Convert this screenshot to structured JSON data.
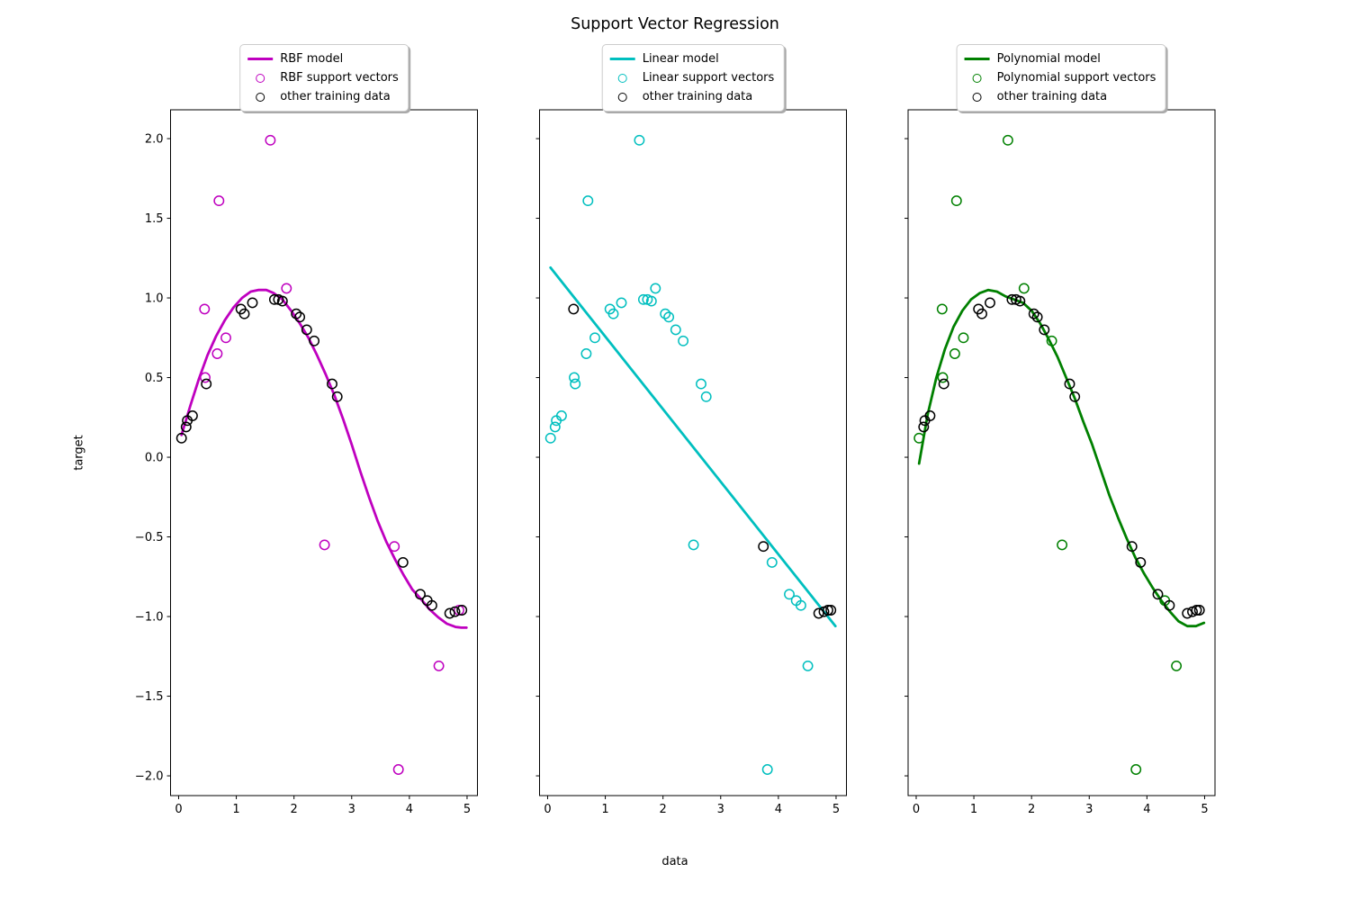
{
  "title": "Support Vector Regression",
  "xlabel": "data",
  "ylabel": "target",
  "other_color": "#000000",
  "axes": {
    "xlim": [
      -0.14,
      5.18
    ],
    "ylim": [
      -2.124,
      2.181
    ],
    "xtick_values": [
      0,
      1,
      2,
      3,
      4,
      5
    ],
    "xtick_labels": [
      "0",
      "1",
      "2",
      "3",
      "4",
      "5"
    ],
    "ytick_values": [
      -2,
      -1.5,
      -1,
      -0.5,
      0,
      0.5,
      1,
      1.5,
      2
    ],
    "ytick_labels": [
      "−2.0",
      "−1.5",
      "−1.0",
      "−0.5",
      "0.0",
      "0.5",
      "1.0",
      "1.5",
      "2.0"
    ],
    "grid": false,
    "legend_position": "upper center, above axes"
  },
  "chart_data": [
    {
      "type": "scatter",
      "kernel": "RBF",
      "color": "#bf00bf",
      "legend": [
        "RBF model",
        "RBF support vectors",
        "other training data"
      ],
      "model_curve": [
        [
          0.05,
          0.14
        ],
        [
          0.2,
          0.32
        ],
        [
          0.35,
          0.49
        ],
        [
          0.5,
          0.64
        ],
        [
          0.65,
          0.76
        ],
        [
          0.8,
          0.86
        ],
        [
          0.95,
          0.94
        ],
        [
          1.1,
          1.0
        ],
        [
          1.25,
          1.04
        ],
        [
          1.38,
          1.05
        ],
        [
          1.52,
          1.05
        ],
        [
          1.65,
          1.03
        ],
        [
          1.8,
          0.99
        ],
        [
          1.95,
          0.92
        ],
        [
          2.1,
          0.84
        ],
        [
          2.25,
          0.75
        ],
        [
          2.4,
          0.64
        ],
        [
          2.55,
          0.52
        ],
        [
          2.7,
          0.39
        ],
        [
          2.85,
          0.24
        ],
        [
          3.0,
          0.08
        ],
        [
          3.15,
          -0.09
        ],
        [
          3.3,
          -0.25
        ],
        [
          3.45,
          -0.4
        ],
        [
          3.6,
          -0.53
        ],
        [
          3.75,
          -0.64
        ],
        [
          3.9,
          -0.74
        ],
        [
          4.05,
          -0.83
        ],
        [
          4.2,
          -0.89
        ],
        [
          4.35,
          -0.955
        ],
        [
          4.5,
          -1.005
        ],
        [
          4.65,
          -1.045
        ],
        [
          4.8,
          -1.065
        ],
        [
          4.9,
          -1.07
        ],
        [
          4.99,
          -1.07
        ]
      ],
      "support_vectors": [
        [
          0.45,
          0.93
        ],
        [
          0.46,
          0.5
        ],
        [
          0.67,
          0.65
        ],
        [
          0.7,
          1.61
        ],
        [
          0.82,
          0.75
        ],
        [
          1.59,
          1.99
        ],
        [
          1.87,
          1.06
        ],
        [
          2.53,
          -0.55
        ],
        [
          3.74,
          -0.56
        ],
        [
          3.81,
          -1.96
        ],
        [
          4.51,
          -1.31
        ],
        [
          4.86,
          -0.96
        ]
      ],
      "other_points": [
        [
          0.05,
          0.12
        ],
        [
          0.13,
          0.19
        ],
        [
          0.15,
          0.23
        ],
        [
          0.24,
          0.26
        ],
        [
          0.48,
          0.46
        ],
        [
          1.08,
          0.93
        ],
        [
          1.14,
          0.9
        ],
        [
          1.28,
          0.97
        ],
        [
          1.66,
          0.99
        ],
        [
          1.73,
          0.99
        ],
        [
          1.8,
          0.98
        ],
        [
          2.04,
          0.9
        ],
        [
          2.1,
          0.88
        ],
        [
          2.22,
          0.8
        ],
        [
          2.35,
          0.73
        ],
        [
          2.66,
          0.46
        ],
        [
          2.75,
          0.38
        ],
        [
          3.89,
          -0.66
        ],
        [
          4.19,
          -0.86
        ],
        [
          4.31,
          -0.9
        ],
        [
          4.39,
          -0.93
        ],
        [
          4.7,
          -0.98
        ],
        [
          4.79,
          -0.97
        ],
        [
          4.91,
          -0.96
        ]
      ]
    },
    {
      "type": "scatter",
      "kernel": "Linear",
      "color": "#00bfbf",
      "legend": [
        "Linear model",
        "Linear support vectors",
        "other training data"
      ],
      "model_curve": [
        [
          0.05,
          1.19
        ],
        [
          4.99,
          -1.06
        ]
      ],
      "support_vectors": [
        [
          0.05,
          0.12
        ],
        [
          0.13,
          0.19
        ],
        [
          0.15,
          0.23
        ],
        [
          0.24,
          0.26
        ],
        [
          0.46,
          0.5
        ],
        [
          0.48,
          0.46
        ],
        [
          0.67,
          0.65
        ],
        [
          0.7,
          1.61
        ],
        [
          0.82,
          0.75
        ],
        [
          1.08,
          0.93
        ],
        [
          1.14,
          0.9
        ],
        [
          1.28,
          0.97
        ],
        [
          1.59,
          1.99
        ],
        [
          1.66,
          0.99
        ],
        [
          1.73,
          0.99
        ],
        [
          1.8,
          0.98
        ],
        [
          1.87,
          1.06
        ],
        [
          2.04,
          0.9
        ],
        [
          2.1,
          0.88
        ],
        [
          2.22,
          0.8
        ],
        [
          2.35,
          0.73
        ],
        [
          2.53,
          -0.55
        ],
        [
          2.66,
          0.46
        ],
        [
          2.75,
          0.38
        ],
        [
          3.81,
          -1.96
        ],
        [
          3.89,
          -0.66
        ],
        [
          4.19,
          -0.86
        ],
        [
          4.31,
          -0.9
        ],
        [
          4.39,
          -0.93
        ],
        [
          4.51,
          -1.31
        ]
      ],
      "other_points": [
        [
          0.45,
          0.93
        ],
        [
          3.74,
          -0.56
        ],
        [
          4.7,
          -0.98
        ],
        [
          4.79,
          -0.97
        ],
        [
          4.86,
          -0.96
        ],
        [
          4.91,
          -0.96
        ]
      ]
    },
    {
      "type": "scatter",
      "kernel": "Polynomial",
      "color": "#008000",
      "legend": [
        "Polynomial model",
        "Polynomial support vectors",
        "other training data"
      ],
      "model_curve": [
        [
          0.05,
          -0.04
        ],
        [
          0.2,
          0.27
        ],
        [
          0.35,
          0.5
        ],
        [
          0.5,
          0.68
        ],
        [
          0.65,
          0.82
        ],
        [
          0.8,
          0.92
        ],
        [
          0.95,
          0.99
        ],
        [
          1.1,
          1.03
        ],
        [
          1.25,
          1.05
        ],
        [
          1.4,
          1.04
        ],
        [
          1.55,
          1.01
        ],
        [
          1.7,
          0.99
        ],
        [
          1.85,
          0.97
        ],
        [
          2.0,
          0.92
        ],
        [
          2.15,
          0.84
        ],
        [
          2.3,
          0.74
        ],
        [
          2.45,
          0.63
        ],
        [
          2.6,
          0.5
        ],
        [
          2.75,
          0.37
        ],
        [
          2.9,
          0.22
        ],
        [
          3.05,
          0.08
        ],
        [
          3.2,
          -0.08
        ],
        [
          3.35,
          -0.24
        ],
        [
          3.5,
          -0.38
        ],
        [
          3.65,
          -0.51
        ],
        [
          3.8,
          -0.63
        ],
        [
          3.95,
          -0.73
        ],
        [
          4.1,
          -0.82
        ],
        [
          4.25,
          -0.9
        ],
        [
          4.4,
          -0.97
        ],
        [
          4.55,
          -1.03
        ],
        [
          4.7,
          -1.06
        ],
        [
          4.85,
          -1.06
        ],
        [
          4.99,
          -1.04
        ]
      ],
      "support_vectors": [
        [
          0.05,
          0.12
        ],
        [
          0.45,
          0.93
        ],
        [
          0.46,
          0.5
        ],
        [
          0.67,
          0.65
        ],
        [
          0.7,
          1.61
        ],
        [
          0.82,
          0.75
        ],
        [
          1.59,
          1.99
        ],
        [
          1.87,
          1.06
        ],
        [
          2.35,
          0.73
        ],
        [
          2.53,
          -0.55
        ],
        [
          3.81,
          -1.96
        ],
        [
          4.31,
          -0.9
        ],
        [
          4.51,
          -1.31
        ]
      ],
      "other_points": [
        [
          0.13,
          0.19
        ],
        [
          0.15,
          0.23
        ],
        [
          0.24,
          0.26
        ],
        [
          0.48,
          0.46
        ],
        [
          1.08,
          0.93
        ],
        [
          1.14,
          0.9
        ],
        [
          1.28,
          0.97
        ],
        [
          1.66,
          0.99
        ],
        [
          1.73,
          0.99
        ],
        [
          1.8,
          0.98
        ],
        [
          2.04,
          0.9
        ],
        [
          2.1,
          0.88
        ],
        [
          2.22,
          0.8
        ],
        [
          2.66,
          0.46
        ],
        [
          2.75,
          0.38
        ],
        [
          3.74,
          -0.56
        ],
        [
          3.89,
          -0.66
        ],
        [
          4.19,
          -0.86
        ],
        [
          4.39,
          -0.93
        ],
        [
          4.7,
          -0.98
        ],
        [
          4.79,
          -0.97
        ],
        [
          4.86,
          -0.96
        ],
        [
          4.91,
          -0.96
        ]
      ]
    }
  ]
}
